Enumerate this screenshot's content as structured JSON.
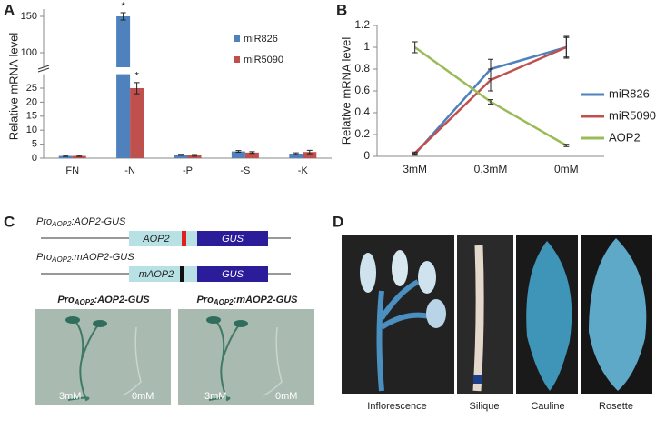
{
  "chart_data": [
    {
      "type": "bar",
      "panel": "A",
      "y_label": "Relative mRNA level",
      "categories": [
        "FN",
        "-N",
        "-P",
        "-S",
        "-K"
      ],
      "series": [
        {
          "name": "miR826",
          "color": "#4f81bd",
          "values": [
            0.8,
            150,
            1.2,
            2.4,
            1.6
          ],
          "errors": [
            0.2,
            5,
            0.2,
            0.3,
            0.3
          ]
        },
        {
          "name": "miR5090",
          "color": "#c0504d",
          "values": [
            0.8,
            25,
            1.0,
            2.0,
            2.2
          ],
          "errors": [
            0.2,
            2,
            0.3,
            0.3,
            0.6
          ]
        }
      ],
      "y_segments": [
        {
          "ylim": [
            0,
            30
          ],
          "yticks": [
            0,
            5,
            10,
            15,
            20,
            25
          ]
        },
        {
          "ylim": [
            80,
            160
          ],
          "yticks": [
            100,
            150
          ]
        }
      ],
      "annotations": [
        {
          "text": "*",
          "series": 0,
          "category": 1
        },
        {
          "text": "*",
          "series": 1,
          "category": 1
        }
      ]
    },
    {
      "type": "line",
      "panel": "B",
      "y_label": "Relative mRNA level",
      "categories": [
        "3mM",
        "0.3mM",
        "0mM"
      ],
      "series": [
        {
          "name": "miR826",
          "color": "#4f81bd",
          "values": [
            0.02,
            0.8,
            1.0
          ],
          "errors": [
            0.01,
            0.09,
            0.1
          ]
        },
        {
          "name": "miR5090",
          "color": "#c0504d",
          "values": [
            0.03,
            0.7,
            1.0
          ],
          "errors": [
            0.01,
            0.1,
            0.09
          ]
        },
        {
          "name": "AOP2",
          "color": "#9bbb59",
          "values": [
            1.0,
            0.5,
            0.1
          ],
          "errors": [
            0.05,
            0.02,
            0.01
          ]
        }
      ],
      "ylim": [
        0,
        1.2
      ],
      "yticks": [
        0,
        0.2,
        0.4,
        0.6,
        0.8,
        1,
        1.2
      ]
    }
  ],
  "panel_c": {
    "letter": "C",
    "constructs": [
      {
        "prefix": "Pro",
        "subscript": "AOP2",
        "suffix": ":AOP2-GUS",
        "gene": "AOP2",
        "reporter": "GUS"
      },
      {
        "prefix": "Pro",
        "subscript": "AOP2",
        "suffix": ":mAOP2-GUS",
        "gene": "mAOP2",
        "reporter": "GUS"
      }
    ],
    "photos": [
      {
        "prefix": "Pro",
        "subscript": "AOP2",
        "suffix": ":AOP2-GUS",
        "left": "3mM",
        "right": "0mM"
      },
      {
        "prefix": "Pro",
        "subscript": "AOP2",
        "suffix": ":mAOP2-GUS",
        "left": "3mM",
        "right": "0mM"
      }
    ]
  },
  "panel_d": {
    "letter": "D",
    "labels": [
      "Inflorescence",
      "Silique",
      "Cauline",
      "Rosette"
    ]
  }
}
